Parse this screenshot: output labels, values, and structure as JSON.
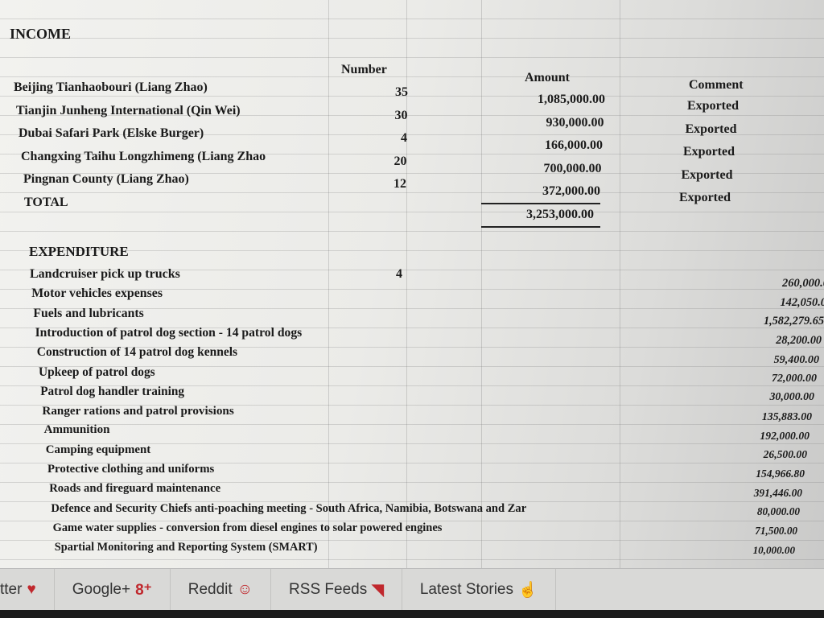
{
  "income": {
    "heading": "INCOME",
    "col_number": "Number",
    "col_amount": "Amount",
    "col_comment": "Comment",
    "rows": [
      {
        "name": "Beijing Tianhaobouri (Liang Zhao)",
        "number": "35",
        "amount": "1,085,000.00",
        "comment": "Exported"
      },
      {
        "name": "Tianjin Junheng International (Qin Wei)",
        "number": "30",
        "amount": "930,000.00",
        "comment": "Exported"
      },
      {
        "name": "Dubai Safari Park (Elske Burger)",
        "number": "4",
        "amount": "166,000.00",
        "comment": "Exported"
      },
      {
        "name": "Changxing Taihu Longzhimeng (Liang Zhao",
        "number": "20",
        "amount": "700,000.00",
        "comment": "Exported"
      },
      {
        "name": "Pingnan County (Liang Zhao)",
        "number": "12",
        "amount": "372,000.00",
        "comment": "Exported"
      }
    ],
    "total_label": "TOTAL",
    "total_amount": "3,253,000.00"
  },
  "expenditure": {
    "heading": "EXPENDITURE",
    "rows": [
      {
        "name": "Landcruiser pick up trucks",
        "number": "4",
        "amount": "260,000.0"
      },
      {
        "name": "Motor vehicles expenses",
        "number": "",
        "amount": "142,050.0"
      },
      {
        "name": "Fuels and lubricants",
        "number": "",
        "amount": "1,582,279.65"
      },
      {
        "name": "Introduction of patrol dog section - 14 patrol dogs",
        "number": "",
        "amount": "28,200.00"
      },
      {
        "name": "Construction of 14 patrol dog kennels",
        "number": "",
        "amount": "59,400.00"
      },
      {
        "name": "Upkeep of patrol dogs",
        "number": "",
        "amount": "72,000.00"
      },
      {
        "name": "Patrol dog handler training",
        "number": "",
        "amount": "30,000.00"
      },
      {
        "name": "Ranger rations and patrol provisions",
        "number": "",
        "amount": "135,883.00"
      },
      {
        "name": "Ammunition",
        "number": "",
        "amount": "192,000.00"
      },
      {
        "name": "Camping equipment",
        "number": "",
        "amount": "26,500.00"
      },
      {
        "name": "Protective clothing and uniforms",
        "number": "",
        "amount": "154,966.80"
      },
      {
        "name": "Roads and fireguard maintenance",
        "number": "",
        "amount": "391,446.00"
      },
      {
        "name": "Defence and Security Chiefs anti-poaching meeting - South Africa, Namibia, Botswana and Zar",
        "number": "",
        "amount": "80,000.00"
      },
      {
        "name": "Game water supplies - conversion from diesel engines to solar powered engines",
        "number": "",
        "amount": "71,500.00"
      },
      {
        "name": "Spartial Monitoring and Reporting System (SMART)",
        "number": "",
        "amount": "10,000.00"
      }
    ]
  },
  "footer": {
    "links": [
      {
        "label": "tter",
        "icon": "twitter-icon",
        "glyph": "♥"
      },
      {
        "label": "Google+",
        "icon": "google-plus-icon",
        "glyph": "8⁺"
      },
      {
        "label": "Reddit",
        "icon": "reddit-icon",
        "glyph": "☺"
      },
      {
        "label": "RSS Feeds",
        "icon": "rss-icon",
        "glyph": "◥"
      },
      {
        "label": "Latest Stories",
        "icon": "thumbs-up-icon",
        "glyph": "☝"
      }
    ],
    "accent": "#c0282d"
  }
}
